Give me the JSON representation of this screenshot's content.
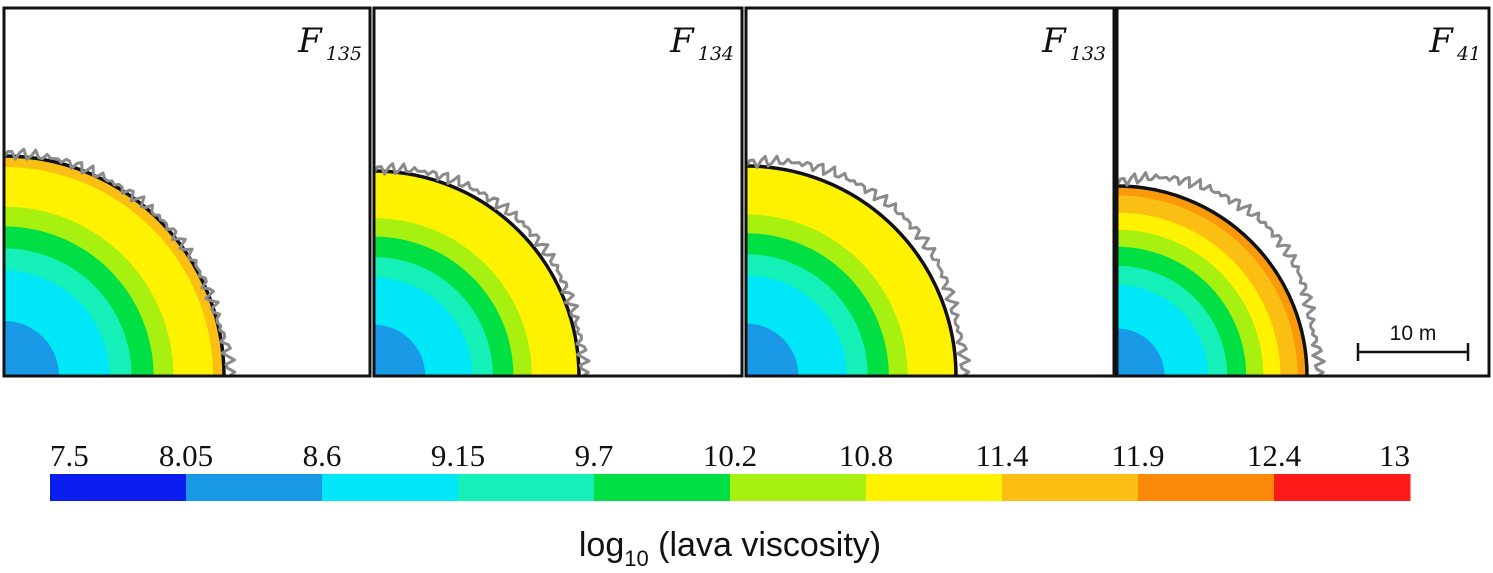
{
  "panels": [
    {
      "label_main": "F",
      "label_sub": "135",
      "zone_colors": [
        "#1a9ae6",
        "#00e8f8",
        "#00e8f8",
        "#14f0b8",
        "#00e044",
        "#a8f010",
        "#fff200",
        "#fff200",
        "#fbbf14"
      ]
    },
    {
      "label_main": "F",
      "label_sub": "134",
      "zone_colors": [
        "#1a9ae6",
        "#00e8f8",
        "#00e8f8",
        "#14f0b8",
        "#00e044",
        "#a8f010",
        "#fff200",
        "#fff200",
        "#fff200"
      ]
    },
    {
      "label_main": "F",
      "label_sub": "133",
      "zone_colors": [
        "#1a9ae6",
        "#00e8f8",
        "#00e8f8",
        "#14f0b8",
        "#00e044",
        "#a8f010",
        "#fff200",
        "#fff200",
        "#fff200"
      ]
    },
    {
      "label_main": "F",
      "label_sub": "41",
      "zone_colors": [
        "#1a9ae6",
        "#00e8f8",
        "#00e8f8",
        "#14f0b8",
        "#00e044",
        "#a8f010",
        "#fff200",
        "#fbbf14",
        "#fa9a0a"
      ]
    }
  ],
  "scale_bar": {
    "label": "10 m"
  },
  "colorbar": {
    "title_prefix": "log",
    "title_sub": "10",
    "title_rest": " (lava viscosity)",
    "ticks": [
      "7.5",
      "8.05",
      "8.6",
      "9.15",
      "9.7",
      "10.2",
      "10.8",
      "11.4",
      "11.9",
      "12.4",
      "13"
    ],
    "colors": [
      "#0a1ef0",
      "#1a9ae6",
      "#00e8f8",
      "#14f0b8",
      "#00e044",
      "#a8f010",
      "#fff200",
      "#fbbf14",
      "#fa8a08",
      "#ff1a1a"
    ]
  }
}
